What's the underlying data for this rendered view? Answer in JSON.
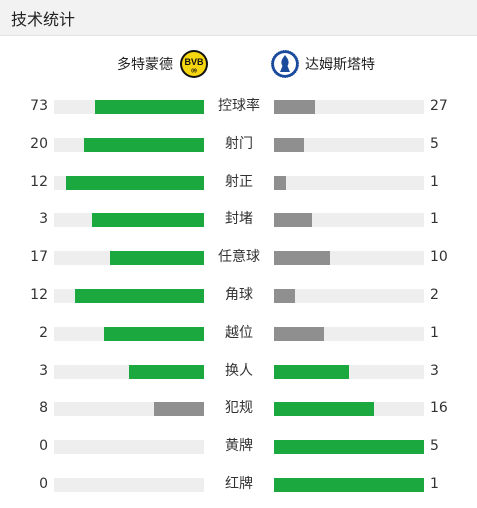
{
  "header": {
    "title": "技术统计"
  },
  "teams": {
    "home": {
      "name": "多特蒙德",
      "logo": "bvb-crest"
    },
    "away": {
      "name": "达姆斯塔特",
      "logo": "darmstadt-crest"
    }
  },
  "colors": {
    "winner": "#1aa83f",
    "loser": "#8f8f8f",
    "track": "#eeeeee"
  },
  "stats": [
    {
      "label": "控球率",
      "home": 73,
      "away": 27
    },
    {
      "label": "射门",
      "home": 20,
      "away": 5
    },
    {
      "label": "射正",
      "home": 12,
      "away": 1
    },
    {
      "label": "封堵",
      "home": 3,
      "away": 1
    },
    {
      "label": "任意球",
      "home": 17,
      "away": 10
    },
    {
      "label": "角球",
      "home": 12,
      "away": 2
    },
    {
      "label": "越位",
      "home": 2,
      "away": 1
    },
    {
      "label": "换人",
      "home": 3,
      "away": 3
    },
    {
      "label": "犯规",
      "home": 8,
      "away": 16
    },
    {
      "label": "黄牌",
      "home": 0,
      "away": 5
    },
    {
      "label": "红牌",
      "home": 0,
      "away": 1
    }
  ]
}
